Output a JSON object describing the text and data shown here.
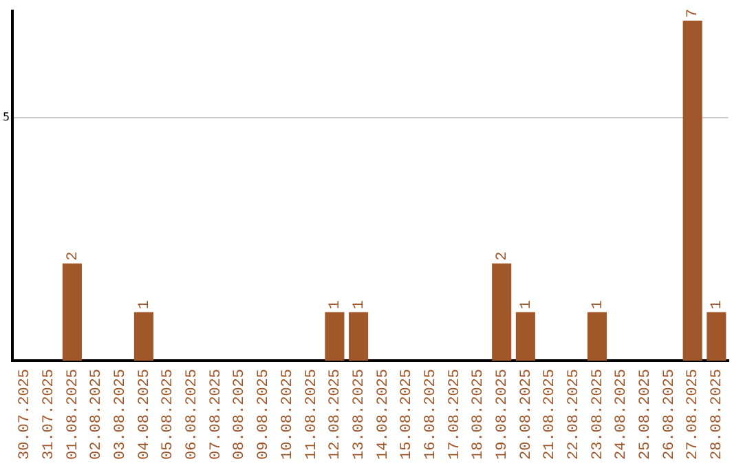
{
  "chart_data": {
    "type": "bar",
    "categories": [
      "30.07.2025",
      "31.07.2025",
      "01.08.2025",
      "02.08.2025",
      "03.08.2025",
      "04.08.2025",
      "05.08.2025",
      "06.08.2025",
      "07.08.2025",
      "08.08.2025",
      "09.08.2025",
      "10.08.2025",
      "11.08.2025",
      "12.08.2025",
      "13.08.2025",
      "14.08.2025",
      "15.08.2025",
      "16.08.2025",
      "17.08.2025",
      "18.08.2025",
      "19.08.2025",
      "20.08.2025",
      "21.08.2025",
      "22.08.2025",
      "23.08.2025",
      "24.08.2025",
      "25.08.2025",
      "26.08.2025",
      "27.08.2025",
      "28.08.2025"
    ],
    "values": [
      0,
      0,
      2,
      0,
      0,
      1,
      0,
      0,
      0,
      0,
      0,
      0,
      0,
      1,
      1,
      0,
      0,
      0,
      0,
      0,
      2,
      1,
      0,
      0,
      1,
      0,
      0,
      0,
      7,
      1
    ],
    "value_labels": [
      null,
      null,
      "2",
      null,
      null,
      "1",
      null,
      null,
      null,
      null,
      null,
      null,
      null,
      "1",
      "1",
      null,
      null,
      null,
      null,
      null,
      "2",
      "1",
      null,
      null,
      "1",
      null,
      null,
      null,
      "7",
      "1"
    ],
    "color": "#a0572a",
    "ylim": [
      0,
      7.2
    ],
    "yticks": [
      5
    ],
    "grid": "y",
    "legend": false
  }
}
